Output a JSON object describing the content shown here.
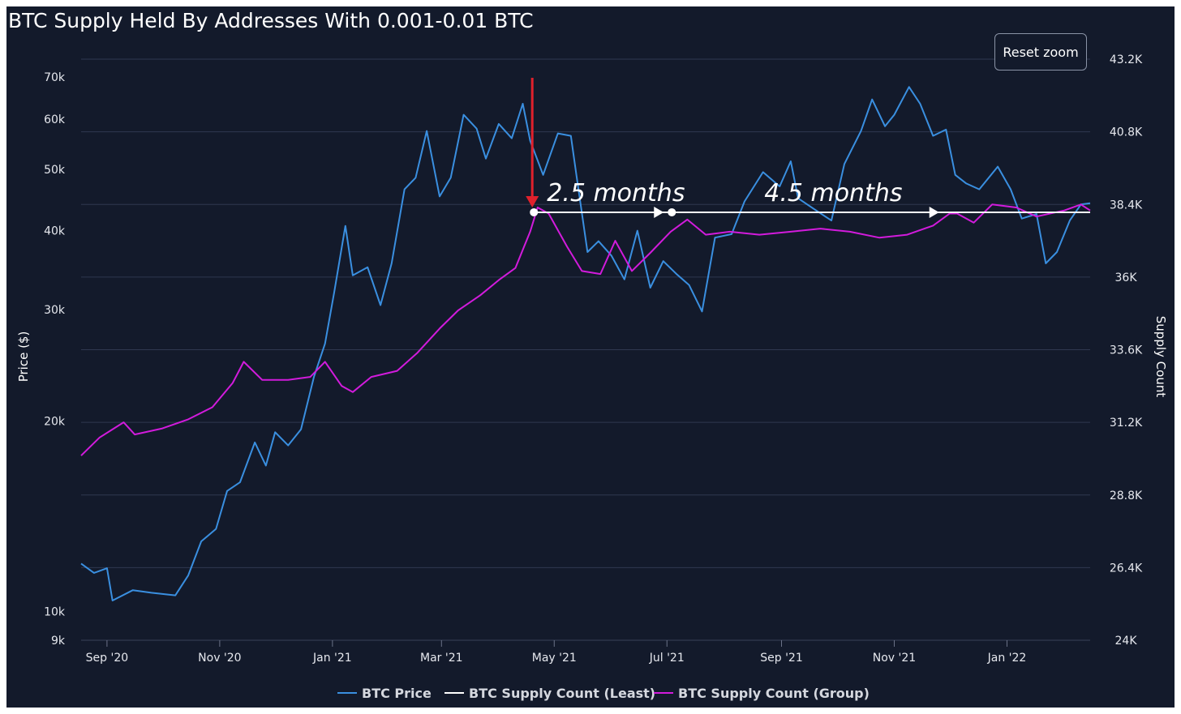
{
  "colors": {
    "background": "#131a2b",
    "btc_price": "#3a8fe0",
    "supply_least": "#ffffff",
    "supply_group": "#d21bdc",
    "arrow_red": "#e0212c"
  },
  "toolbar": {
    "reset_zoom_label": "Reset zoom"
  },
  "chart_data": {
    "type": "line",
    "title": "BTC Supply Held By Addresses With 0.001-0.01 BTC",
    "ylabel_left": "Price ($)",
    "ylabel_right": "Supply Count",
    "y_left_scale": "log",
    "y_left_range": [
      9000,
      70000
    ],
    "y_left_ticks": [
      "70k",
      "60k",
      "50k",
      "40k",
      "30k",
      "20k",
      "10k",
      "9k"
    ],
    "y_left_tick_values": [
      70000,
      60000,
      50000,
      40000,
      30000,
      20000,
      10000,
      9000
    ],
    "y_right_range": [
      24000,
      43200
    ],
    "y_right_ticks": [
      "43.2K",
      "40.8K",
      "38.4K",
      "36K",
      "33.6K",
      "31.2K",
      "28.8K",
      "26.4K",
      "24K"
    ],
    "y_right_tick_values": [
      43200,
      40800,
      38400,
      36000,
      33600,
      31200,
      28800,
      26400,
      24000
    ],
    "x_range": [
      "2020-08-18",
      "2022-02-15"
    ],
    "x_ticks": [
      "Sep '20",
      "Nov '20",
      "Jan '21",
      "Mar '21",
      "May '21",
      "Jul '21",
      "Sep '21",
      "Nov '21",
      "Jan '22"
    ],
    "x_tick_dates": [
      "2020-09-01",
      "2020-11-01",
      "2021-01-01",
      "2021-03-01",
      "2021-05-01",
      "2021-07-01",
      "2021-09-01",
      "2021-11-01",
      "2022-01-01"
    ],
    "grid": true,
    "legend_position": "bottom",
    "series": [
      {
        "name": "BTC Price",
        "axis": "left",
        "points": [
          [
            "2020-08-18",
            11900
          ],
          [
            "2020-08-25",
            11500
          ],
          [
            "2020-09-01",
            11700
          ],
          [
            "2020-09-04",
            10400
          ],
          [
            "2020-09-15",
            10800
          ],
          [
            "2020-09-25",
            10700
          ],
          [
            "2020-10-08",
            10600
          ],
          [
            "2020-10-15",
            11400
          ],
          [
            "2020-10-22",
            12900
          ],
          [
            "2020-10-30",
            13500
          ],
          [
            "2020-11-05",
            15500
          ],
          [
            "2020-11-12",
            16000
          ],
          [
            "2020-11-20",
            18500
          ],
          [
            "2020-11-26",
            17000
          ],
          [
            "2020-12-01",
            19200
          ],
          [
            "2020-12-08",
            18300
          ],
          [
            "2020-12-15",
            19400
          ],
          [
            "2020-12-22",
            23500
          ],
          [
            "2020-12-28",
            26500
          ],
          [
            "2021-01-02",
            32000
          ],
          [
            "2021-01-08",
            40700
          ],
          [
            "2021-01-12",
            34000
          ],
          [
            "2021-01-20",
            35000
          ],
          [
            "2021-01-27",
            30500
          ],
          [
            "2021-02-02",
            35500
          ],
          [
            "2021-02-09",
            46500
          ],
          [
            "2021-02-15",
            48500
          ],
          [
            "2021-02-21",
            57500
          ],
          [
            "2021-02-28",
            45300
          ],
          [
            "2021-03-06",
            48500
          ],
          [
            "2021-03-13",
            61000
          ],
          [
            "2021-03-20",
            58000
          ],
          [
            "2021-03-25",
            52000
          ],
          [
            "2021-04-01",
            59000
          ],
          [
            "2021-04-08",
            56000
          ],
          [
            "2021-04-14",
            63500
          ],
          [
            "2021-04-18",
            55500
          ],
          [
            "2021-04-25",
            49000
          ],
          [
            "2021-05-03",
            57000
          ],
          [
            "2021-05-10",
            56500
          ],
          [
            "2021-05-13",
            49000
          ],
          [
            "2021-05-19",
            37000
          ],
          [
            "2021-05-25",
            38500
          ],
          [
            "2021-06-01",
            36500
          ],
          [
            "2021-06-08",
            33500
          ],
          [
            "2021-06-15",
            40000
          ],
          [
            "2021-06-22",
            32500
          ],
          [
            "2021-06-29",
            35800
          ],
          [
            "2021-07-06",
            34200
          ],
          [
            "2021-07-13",
            32800
          ],
          [
            "2021-07-20",
            29800
          ],
          [
            "2021-07-27",
            39000
          ],
          [
            "2021-08-05",
            39500
          ],
          [
            "2021-08-12",
            44500
          ],
          [
            "2021-08-22",
            49500
          ],
          [
            "2021-08-31",
            47000
          ],
          [
            "2021-09-06",
            51500
          ],
          [
            "2021-09-10",
            45000
          ],
          [
            "2021-09-20",
            43000
          ],
          [
            "2021-09-28",
            41500
          ],
          [
            "2021-10-05",
            51000
          ],
          [
            "2021-10-14",
            57500
          ],
          [
            "2021-10-20",
            64500
          ],
          [
            "2021-10-27",
            58500
          ],
          [
            "2021-11-01",
            61000
          ],
          [
            "2021-11-09",
            67500
          ],
          [
            "2021-11-15",
            63500
          ],
          [
            "2021-11-22",
            56500
          ],
          [
            "2021-11-29",
            57800
          ],
          [
            "2021-12-04",
            49000
          ],
          [
            "2021-12-10",
            47500
          ],
          [
            "2021-12-17",
            46500
          ],
          [
            "2021-12-27",
            50500
          ],
          [
            "2022-01-03",
            46500
          ],
          [
            "2022-01-09",
            41800
          ],
          [
            "2022-01-17",
            42500
          ],
          [
            "2022-01-22",
            35500
          ],
          [
            "2022-01-28",
            37000
          ],
          [
            "2022-02-04",
            41500
          ],
          [
            "2022-02-10",
            44000
          ],
          [
            "2022-02-15",
            44200
          ]
        ]
      },
      {
        "name": "BTC Supply Count (Least)",
        "axis": "right",
        "points": [
          [
            "2021-04-20",
            38140
          ],
          [
            "2022-02-15",
            38140
          ]
        ]
      },
      {
        "name": "BTC Supply Count (Group)",
        "axis": "right",
        "points": [
          [
            "2020-08-18",
            30100
          ],
          [
            "2020-08-28",
            30700
          ],
          [
            "2020-09-10",
            31200
          ],
          [
            "2020-09-16",
            30800
          ],
          [
            "2020-10-01",
            31000
          ],
          [
            "2020-10-15",
            31300
          ],
          [
            "2020-10-28",
            31700
          ],
          [
            "2020-11-08",
            32500
          ],
          [
            "2020-11-14",
            33200
          ],
          [
            "2020-11-24",
            32600
          ],
          [
            "2020-12-08",
            32600
          ],
          [
            "2020-12-20",
            32700
          ],
          [
            "2020-12-28",
            33200
          ],
          [
            "2021-01-06",
            32400
          ],
          [
            "2021-01-12",
            32200
          ],
          [
            "2021-01-22",
            32700
          ],
          [
            "2021-02-05",
            32900
          ],
          [
            "2021-02-16",
            33500
          ],
          [
            "2021-02-28",
            34300
          ],
          [
            "2021-03-10",
            34900
          ],
          [
            "2021-03-22",
            35400
          ],
          [
            "2021-04-01",
            35900
          ],
          [
            "2021-04-10",
            36300
          ],
          [
            "2021-04-18",
            37500
          ],
          [
            "2021-04-22",
            38300
          ],
          [
            "2021-04-28",
            38100
          ],
          [
            "2021-05-08",
            37000
          ],
          [
            "2021-05-16",
            36200
          ],
          [
            "2021-05-26",
            36100
          ],
          [
            "2021-06-03",
            37200
          ],
          [
            "2021-06-12",
            36200
          ],
          [
            "2021-06-22",
            36800
          ],
          [
            "2021-07-03",
            37500
          ],
          [
            "2021-07-12",
            37900
          ],
          [
            "2021-07-22",
            37400
          ],
          [
            "2021-08-04",
            37500
          ],
          [
            "2021-08-20",
            37400
          ],
          [
            "2021-09-06",
            37500
          ],
          [
            "2021-09-22",
            37600
          ],
          [
            "2021-10-08",
            37500
          ],
          [
            "2021-10-24",
            37300
          ],
          [
            "2021-11-08",
            37400
          ],
          [
            "2021-11-22",
            37700
          ],
          [
            "2021-12-01",
            38100
          ],
          [
            "2021-12-05",
            38100
          ],
          [
            "2021-12-14",
            37800
          ],
          [
            "2021-12-24",
            38400
          ],
          [
            "2022-01-06",
            38300
          ],
          [
            "2022-01-17",
            38000
          ],
          [
            "2022-02-01",
            38200
          ],
          [
            "2022-02-10",
            38400
          ],
          [
            "2022-02-15",
            38200
          ]
        ]
      }
    ],
    "annotations": [
      {
        "text": "2.5 months",
        "from": "2021-04-20",
        "to": "2021-07-01",
        "at_supply": 38140
      },
      {
        "text": "4.5 months",
        "from": "2021-07-01",
        "to": "2021-11-27",
        "at_supply": 38140
      }
    ]
  }
}
